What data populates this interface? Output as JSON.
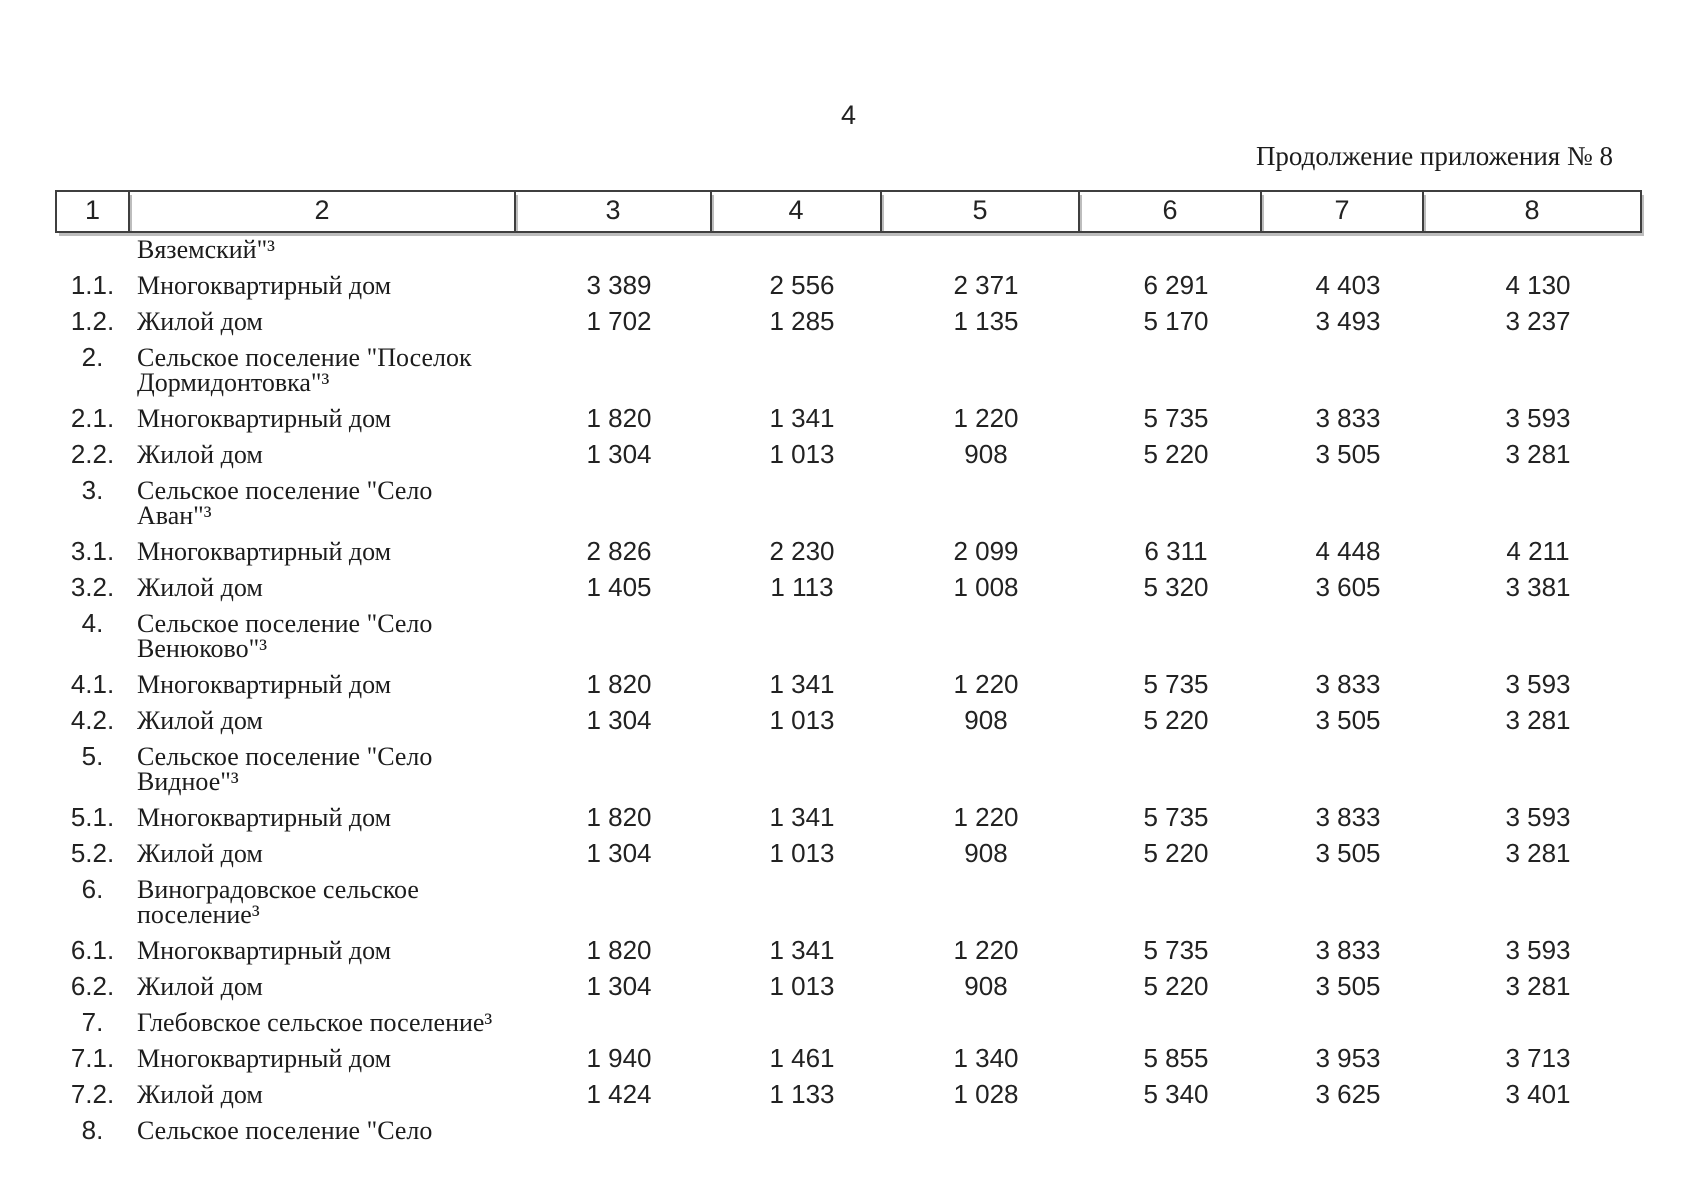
{
  "page": {
    "number": "4",
    "continuation_note": "Продолжение приложения № 8"
  },
  "table": {
    "header": [
      "1",
      "2",
      "3",
      "4",
      "5",
      "6",
      "7",
      "8"
    ],
    "rows": [
      {
        "num": "",
        "label": "Вяземский\"³",
        "values": [
          "",
          "",
          "",
          "",
          "",
          ""
        ]
      },
      {
        "num": "1.1.",
        "label": "Многоквартирный дом",
        "values": [
          "3 389",
          "2 556",
          "2 371",
          "6 291",
          "4 403",
          "4 130"
        ]
      },
      {
        "num": "1.2.",
        "label": "Жилой дом",
        "values": [
          "1 702",
          "1 285",
          "1 135",
          "5 170",
          "3 493",
          "3 237"
        ]
      },
      {
        "num": "2.",
        "label": "Сельское поселение \"Поселок\nДормидонтовка\"³",
        "values": [
          "",
          "",
          "",
          "",
          "",
          ""
        ]
      },
      {
        "num": "2.1.",
        "label": "Многоквартирный дом",
        "values": [
          "1 820",
          "1 341",
          "1 220",
          "5 735",
          "3 833",
          "3 593"
        ]
      },
      {
        "num": "2.2.",
        "label": "Жилой дом",
        "values": [
          "1 304",
          "1 013",
          "908",
          "5 220",
          "3 505",
          "3 281"
        ]
      },
      {
        "num": "3.",
        "label": "Сельское поселение \"Село\nАван\"³",
        "values": [
          "",
          "",
          "",
          "",
          "",
          ""
        ]
      },
      {
        "num": "3.1.",
        "label": "Многоквартирный дом",
        "values": [
          "2 826",
          "2 230",
          "2 099",
          "6 311",
          "4 448",
          "4 211"
        ]
      },
      {
        "num": "3.2.",
        "label": "Жилой дом",
        "values": [
          "1 405",
          "1 113",
          "1 008",
          "5 320",
          "3 605",
          "3 381"
        ]
      },
      {
        "num": "4.",
        "label": "Сельское поселение \"Село\nВенюково\"³",
        "values": [
          "",
          "",
          "",
          "",
          "",
          ""
        ]
      },
      {
        "num": "4.1.",
        "label": "Многоквартирный дом",
        "values": [
          "1 820",
          "1 341",
          "1 220",
          "5 735",
          "3 833",
          "3 593"
        ]
      },
      {
        "num": "4.2.",
        "label": "Жилой дом",
        "values": [
          "1 304",
          "1 013",
          "908",
          "5 220",
          "3 505",
          "3 281"
        ]
      },
      {
        "num": "5.",
        "label": "Сельское поселение \"Село\nВидное\"³",
        "values": [
          "",
          "",
          "",
          "",
          "",
          ""
        ]
      },
      {
        "num": "5.1.",
        "label": "Многоквартирный дом",
        "values": [
          "1 820",
          "1 341",
          "1 220",
          "5 735",
          "3 833",
          "3 593"
        ]
      },
      {
        "num": "5.2.",
        "label": "Жилой дом",
        "values": [
          "1 304",
          "1 013",
          "908",
          "5 220",
          "3 505",
          "3 281"
        ]
      },
      {
        "num": "6.",
        "label": "Виноградовское сельское\nпоселение³",
        "values": [
          "",
          "",
          "",
          "",
          "",
          ""
        ]
      },
      {
        "num": "6.1.",
        "label": "Многоквартирный дом",
        "values": [
          "1 820",
          "1 341",
          "1 220",
          "5 735",
          "3 833",
          "3 593"
        ]
      },
      {
        "num": "6.2.",
        "label": "Жилой дом",
        "values": [
          "1 304",
          "1 013",
          "908",
          "5 220",
          "3 505",
          "3 281"
        ]
      },
      {
        "num": "7.",
        "label": "Глебовское сельское поселение³",
        "values": [
          "",
          "",
          "",
          "",
          "",
          ""
        ]
      },
      {
        "num": "7.1.",
        "label": "Многоквартирный дом",
        "values": [
          "1 940",
          "1 461",
          "1 340",
          "5 855",
          "3 953",
          "3 713"
        ]
      },
      {
        "num": "7.2.",
        "label": "Жилой дом",
        "values": [
          "1 424",
          "1 133",
          "1 028",
          "5 340",
          "3 625",
          "3 401"
        ]
      },
      {
        "num": "8.",
        "label": "Сельское поселение \"Село",
        "values": [
          "",
          "",
          "",
          "",
          "",
          ""
        ]
      }
    ]
  }
}
